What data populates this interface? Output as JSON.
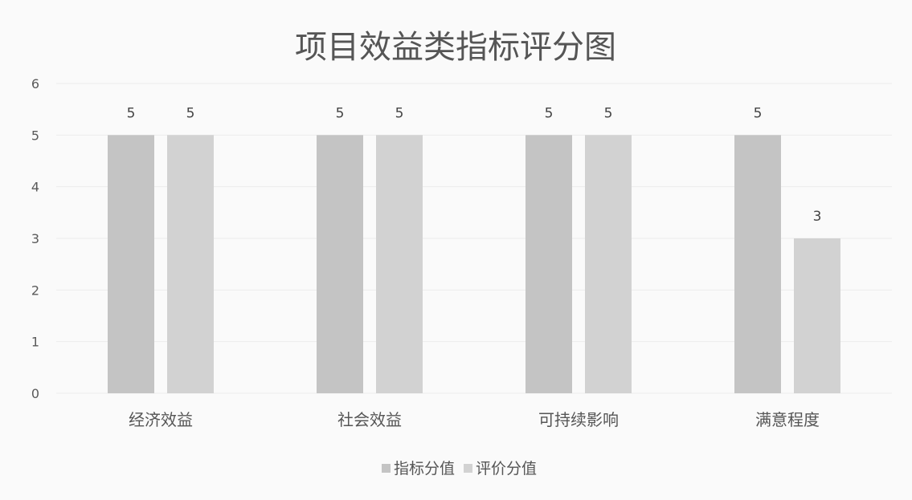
{
  "chart_data": {
    "type": "bar",
    "title": "项目效益类指标评分图",
    "categories": [
      "经济效益",
      "社会效益",
      "可持续影响",
      "满意程度"
    ],
    "series": [
      {
        "name": "指标分值",
        "values": [
          5,
          5,
          5,
          5
        ],
        "color": "#c4c4c4"
      },
      {
        "name": "评价分值",
        "values": [
          5,
          5,
          5,
          3
        ],
        "color": "#d2d2d2"
      }
    ],
    "ylim": [
      0,
      6
    ],
    "yticks": [
      "0",
      "1",
      "2",
      "3",
      "4",
      "5",
      "6"
    ],
    "grid": true,
    "data_labels": true,
    "legend": "bottom"
  }
}
